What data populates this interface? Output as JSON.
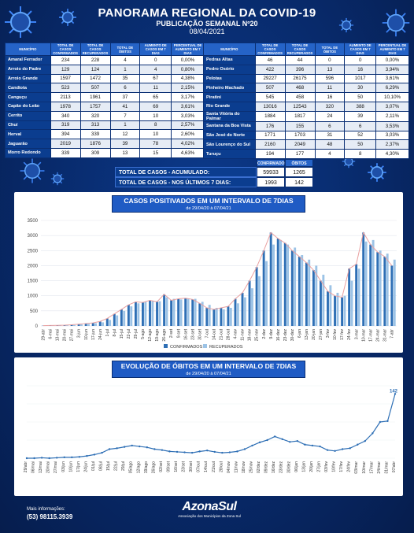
{
  "header": {
    "title": "PANORAMA REGIONAL DA COVID-19",
    "subtitle": "PUBLICAÇÃO SEMANAL Nº20",
    "date": "08/04/2021"
  },
  "columns": [
    "MUNICÍPIO",
    "TOTAL DE CASOS CONFIRMADOS",
    "TOTAL DE CASOS RECUPERADOS",
    "TOTAL DE ÓBITOS",
    "AUMENTO DE CASOS EM 7 DIAS",
    "PERCENTUAL DE AUMENTO EM 7 DIAS"
  ],
  "left_table": [
    [
      "Amaral Ferrador",
      "234",
      "228",
      "4",
      "0",
      "0,00%"
    ],
    [
      "Arroio do Padre",
      "129",
      "124",
      "1",
      "4",
      "0,80%"
    ],
    [
      "Arroio Grande",
      "1597",
      "1472",
      "35",
      "67",
      "4,38%"
    ],
    [
      "Candiota",
      "523",
      "507",
      "6",
      "11",
      "2,15%"
    ],
    [
      "Canguçu",
      "2113",
      "1961",
      "37",
      "65",
      "3,17%"
    ],
    [
      "Capão do Leão",
      "1978",
      "1757",
      "41",
      "69",
      "3,61%"
    ],
    [
      "Cerrito",
      "340",
      "320",
      "7",
      "10",
      "3,03%"
    ],
    [
      "Chuí",
      "319",
      "313",
      "1",
      "8",
      "2,57%"
    ],
    [
      "Herval",
      "394",
      "339",
      "12",
      "10",
      "2,60%"
    ],
    [
      "Jaguarão",
      "2019",
      "1876",
      "39",
      "78",
      "4,02%"
    ],
    [
      "Morro Redondo",
      "339",
      "309",
      "13",
      "15",
      "4,63%"
    ]
  ],
  "right_table": [
    [
      "Pedras Altas",
      "46",
      "44",
      "0",
      "0",
      "0,00%"
    ],
    [
      "Pedro Osório",
      "422",
      "396",
      "13",
      "16",
      "3,94%"
    ],
    [
      "Pelotas",
      "29227",
      "26175",
      "596",
      "1017",
      "3,61%"
    ],
    [
      "Pinheiro Machado",
      "507",
      "468",
      "11",
      "30",
      "6,29%"
    ],
    [
      "Piratini",
      "545",
      "458",
      "16",
      "50",
      "10,10%"
    ],
    [
      "Rio Grande",
      "13016",
      "12543",
      "320",
      "388",
      "3,07%"
    ],
    [
      "Santa Vitória do Palmar",
      "1884",
      "1817",
      "24",
      "39",
      "2,11%"
    ],
    [
      "Santana da Boa Vista",
      "176",
      "155",
      "6",
      "6",
      "3,53%"
    ],
    [
      "São José do Norte",
      "1771",
      "1703",
      "31",
      "52",
      "3,03%"
    ],
    [
      "São Lourenço do Sul",
      "2160",
      "2049",
      "48",
      "50",
      "2,37%"
    ],
    [
      "Turuçu",
      "194",
      "177",
      "4",
      "8",
      "4,30%"
    ]
  ],
  "totals": {
    "col_confirmados": "CONFIRMADOS",
    "col_obitos": "ÓBITOS",
    "acumulado_label": "TOTAL DE CASOS - ACUMULADO:",
    "acumulado_conf": "59933",
    "acumulado_obitos": "1265",
    "ultimos_label": "TOTAL DE CASOS - NOS ÚLTIMOS 7 DIAS:",
    "ultimos_conf": "1993",
    "ultimos_obitos": "142"
  },
  "chart_data": [
    {
      "type": "bar",
      "title": "CASOS POSITIVADOS EM UM INTERVALO DE 7DIAS",
      "subtitle": "de 29/04/20 à 07/04/21",
      "categories": [
        "29-abr",
        "6-mai",
        "13-mai",
        "20-mai",
        "27-mai",
        "3-jun",
        "10-jun",
        "17-jun",
        "24-jun",
        "1-jul",
        "8-jul",
        "15-jul",
        "22-jul",
        "29-jul",
        "5-ago",
        "12-ago",
        "19-ago",
        "26-ago",
        "2-set",
        "9-set",
        "16-set",
        "23-set",
        "30-set",
        "7-out",
        "14-out",
        "21-out",
        "28-out",
        "4-nov",
        "11-nov",
        "18-nov",
        "25-nov",
        "2-dez",
        "9-dez",
        "16-dez",
        "23-dez",
        "30-dez",
        "6-jan",
        "13-jan",
        "20-jan",
        "27-jan",
        "3-fev",
        "10-fev",
        "17-fev",
        "24-fev",
        "3-mar",
        "10-mar",
        "17-mar",
        "24-mar",
        "31-mar",
        "7-abr"
      ],
      "series": [
        {
          "name": "CONFIRMADOS",
          "values": [
            10,
            15,
            20,
            25,
            40,
            60,
            80,
            100,
            150,
            250,
            400,
            550,
            700,
            800,
            780,
            850,
            800,
            1050,
            850,
            900,
            920,
            880,
            750,
            600,
            550,
            600,
            650,
            900,
            1100,
            1500,
            1950,
            2500,
            3100,
            2900,
            2750,
            2500,
            2300,
            2100,
            1850,
            1500,
            1150,
            1000,
            950,
            1900,
            2050,
            3100,
            2700,
            2450,
            2300,
            2000
          ]
        },
        {
          "name": "RECUPERADOS",
          "values": [
            5,
            10,
            15,
            20,
            30,
            50,
            70,
            90,
            120,
            200,
            350,
            500,
            650,
            750,
            800,
            820,
            820,
            950,
            900,
            880,
            900,
            900,
            800,
            700,
            600,
            550,
            600,
            750,
            950,
            1250,
            1650,
            2150,
            2700,
            2850,
            2700,
            2600,
            2350,
            2200,
            2000,
            1700,
            1350,
            1100,
            1000,
            1500,
            1900,
            2800,
            2850,
            2500,
            2400,
            2200
          ]
        }
      ],
      "ylim": [
        0,
        3500
      ],
      "yticks": [
        0,
        500,
        1000,
        1500,
        2000,
        2500,
        3000,
        3500
      ],
      "legend": [
        "CONFIRMADOS",
        "RECUPERADOS"
      ]
    },
    {
      "type": "line",
      "title": "EVOLUÇÃO DE ÓBITOS EM UM INTERVALO DE 7DIAS",
      "subtitle": "de 29/04/20 à 07/04/21",
      "categories": [
        "29/abr",
        "06/mai",
        "13/mai",
        "20/mai",
        "27/mai",
        "03/jun",
        "10/jun",
        "17/jun",
        "24/jun",
        "01/jul",
        "08/jul",
        "15/jul",
        "22/jul",
        "29/jul",
        "05/ago",
        "12/ago",
        "19/ago",
        "26/ago",
        "02/set",
        "09/set",
        "16/set",
        "23/set",
        "30/set",
        "07/out",
        "14/out",
        "21/out",
        "28/out",
        "04/nov",
        "11/nov",
        "18/nov",
        "25/nov",
        "02/dez",
        "09/dez",
        "16/dez",
        "23/dez",
        "30/dez",
        "06/jan",
        "13/jan",
        "20/jan",
        "27/jan",
        "03/fev",
        "10/fev",
        "17/fev",
        "24/fev",
        "03/mar",
        "10/mar",
        "17/mar",
        "24/mar",
        "31/mar",
        "07/abr"
      ],
      "values": [
        0,
        0,
        1,
        0,
        1,
        2,
        2,
        3,
        5,
        8,
        12,
        20,
        22,
        25,
        28,
        26,
        24,
        20,
        18,
        15,
        14,
        13,
        12,
        15,
        17,
        14,
        12,
        13,
        15,
        20,
        28,
        35,
        40,
        48,
        42,
        36,
        38,
        30,
        28,
        26,
        18,
        16,
        20,
        22,
        30,
        38,
        55,
        80,
        82,
        142
      ],
      "highlight_label": "142",
      "ylim": [
        0,
        160
      ]
    }
  ],
  "footer": {
    "info_label": "Mais informações:",
    "phone": "(53) 98115.3939",
    "logo_name": "AzonaSul",
    "logo_sub": "Associação dos Municípios da Zona Sul"
  }
}
